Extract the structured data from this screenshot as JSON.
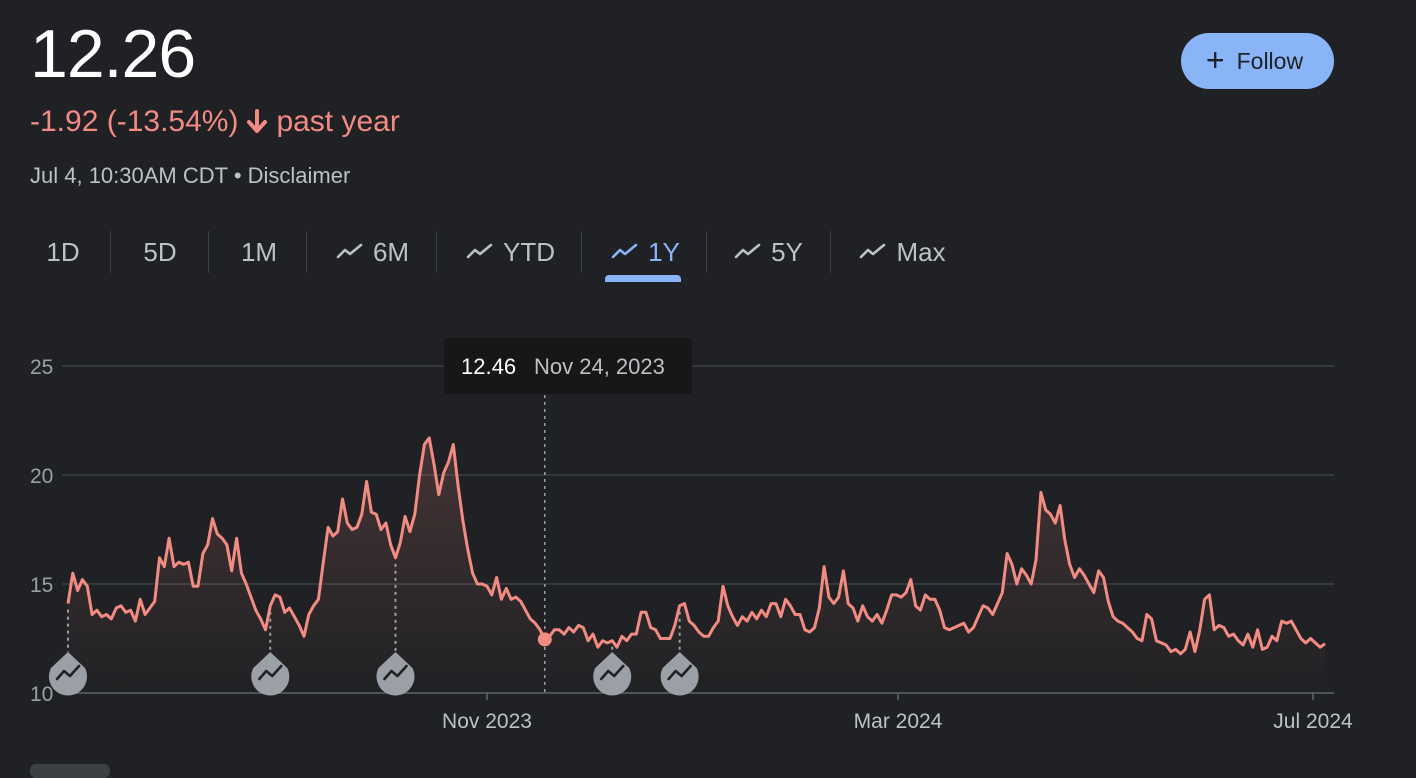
{
  "header": {
    "price": "12.26",
    "change": "-1.92 (-13.54%)",
    "change_period": "past year",
    "timestamp": "Jul 4, 10:30AM CDT",
    "separator": "•",
    "disclaimer": "Disclaimer",
    "follow_label": "Follow",
    "colors": {
      "negative": "#f28b82",
      "accent": "#8ab4f8"
    }
  },
  "tabs": [
    {
      "label": "1D",
      "icon": null,
      "active": false
    },
    {
      "label": "5D",
      "icon": null,
      "active": false
    },
    {
      "label": "1M",
      "icon": null,
      "active": false
    },
    {
      "label": "6M",
      "icon": "trend-icon",
      "active": false
    },
    {
      "label": "YTD",
      "icon": "trend-icon",
      "active": false
    },
    {
      "label": "1Y",
      "icon": "trend-icon",
      "active": true
    },
    {
      "label": "5Y",
      "icon": "trend-icon",
      "active": false
    },
    {
      "label": "Max",
      "icon": "trend-icon",
      "active": false
    }
  ],
  "tooltip": {
    "value": "12.46",
    "date": "Nov 24, 2023"
  },
  "chart_data": {
    "type": "area",
    "title": "",
    "xlabel": "",
    "ylabel": "",
    "ylim": [
      10,
      25
    ],
    "yticks": [
      10,
      15,
      20,
      25
    ],
    "xticks": [
      "Nov 2023",
      "Mar 2024",
      "Jul 2024"
    ],
    "grid": true,
    "line_color": "#f28b82",
    "highlight": {
      "date": "Nov 24, 2023",
      "value": 12.46
    },
    "event_markers": [
      "Aug 2023",
      "Sep 2023",
      "Oct 2023",
      "Dec 2023",
      "Jan 2024"
    ],
    "series": [
      {
        "values": [
          14.1,
          15.5,
          14.7,
          15.2,
          14.9,
          13.6,
          13.8,
          13.5,
          13.6,
          13.4,
          13.9,
          14.0,
          13.7,
          13.8,
          13.3,
          14.3,
          13.6,
          13.9,
          14.2,
          16.2,
          15.8,
          17.1,
          15.8,
          16.0,
          15.9,
          16.0,
          14.9,
          14.9,
          16.4,
          16.8,
          18.0,
          17.3,
          17.1,
          16.8,
          15.6,
          17.1,
          15.5,
          15.0,
          14.4,
          13.8,
          13.4,
          12.9,
          14.0,
          14.5,
          14.4,
          13.7,
          13.9,
          13.5,
          13.1,
          12.6,
          13.6,
          14.0,
          14.3,
          16.0,
          17.6,
          17.2,
          17.4,
          18.9,
          17.8,
          17.5,
          17.6,
          18.2,
          19.7,
          18.3,
          18.2,
          17.5,
          17.8,
          16.8,
          16.2,
          16.9,
          18.1,
          17.4,
          18.2,
          20.0,
          21.4,
          21.7,
          20.5,
          19.1,
          20.1,
          20.6,
          21.4,
          19.5,
          17.9,
          16.6,
          15.5,
          15.0,
          15.0,
          14.9,
          14.5,
          15.3,
          14.3,
          14.8,
          14.3,
          14.4,
          14.2,
          13.8,
          13.4,
          13.2,
          12.9,
          12.46,
          12.6,
          12.9,
          12.9,
          12.7,
          13.0,
          12.8,
          13.1,
          13.0,
          12.4,
          12.7,
          12.1,
          12.4,
          12.3,
          12.4,
          12.1,
          12.6,
          12.4,
          12.7,
          12.7,
          13.7,
          13.7,
          13.0,
          12.9,
          12.5,
          12.5,
          12.5,
          13.1,
          14.0,
          14.1,
          13.3,
          13.1,
          12.8,
          12.6,
          12.6,
          13.0,
          13.3,
          14.9,
          14.0,
          13.5,
          13.1,
          13.5,
          13.3,
          13.7,
          13.4,
          13.8,
          13.5,
          14.1,
          14.1,
          13.5,
          14.3,
          14.0,
          13.6,
          13.6,
          12.9,
          12.8,
          13.0,
          13.9,
          15.8,
          14.4,
          14.1,
          14.4,
          15.6,
          14.1,
          13.9,
          13.3,
          14.0,
          13.5,
          13.3,
          13.6,
          13.2,
          13.8,
          14.5,
          14.5,
          14.4,
          14.6,
          15.2,
          14.0,
          13.8,
          14.5,
          14.3,
          14.3,
          13.8,
          13.0,
          12.9,
          13.0,
          13.1,
          13.2,
          12.8,
          13.0,
          13.5,
          14.0,
          13.9,
          13.6,
          14.1,
          14.6,
          16.4,
          15.9,
          15.0,
          15.7,
          15.4,
          15.0,
          16.1,
          19.2,
          18.4,
          18.2,
          17.8,
          18.6,
          17.0,
          15.9,
          15.3,
          15.7,
          15.4,
          15.0,
          14.6,
          15.6,
          15.3,
          14.2,
          13.5,
          13.3,
          13.2,
          13.0,
          12.8,
          12.5,
          12.4,
          13.6,
          13.4,
          12.4,
          12.3,
          12.2,
          11.9,
          12.0,
          11.8,
          12.0,
          12.8,
          11.9,
          12.9,
          14.3,
          14.5,
          12.9,
          13.1,
          13.0,
          12.6,
          12.7,
          12.4,
          12.2,
          12.7,
          12.1,
          12.9,
          12.0,
          12.1,
          12.6,
          12.4,
          13.3,
          13.2,
          13.3,
          12.9,
          12.5,
          12.3,
          12.5,
          12.3,
          12.1,
          12.26
        ]
      }
    ]
  }
}
